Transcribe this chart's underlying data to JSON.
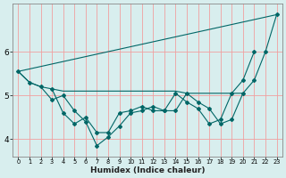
{
  "xlabel": "Humidex (Indice chaleur)",
  "bg_color": "#d8eeee",
  "grid_color": "#f0a0a0",
  "line_color": "#006666",
  "xlim": [
    -0.5,
    23.5
  ],
  "ylim": [
    3.6,
    7.1
  ],
  "yticks": [
    4,
    5,
    6
  ],
  "xticks": [
    0,
    1,
    2,
    3,
    4,
    5,
    6,
    7,
    8,
    9,
    10,
    11,
    12,
    13,
    14,
    15,
    16,
    17,
    18,
    19,
    20,
    21,
    22,
    23
  ],
  "series": [
    {
      "x": [
        0,
        23
      ],
      "y": [
        5.55,
        6.85
      ]
    },
    {
      "x": [
        0,
        1,
        2,
        3,
        4,
        5,
        6,
        7,
        8,
        9,
        10,
        11,
        12,
        13,
        14,
        15,
        16,
        17,
        18,
        19,
        20
      ],
      "y": [
        5.55,
        5.3,
        5.2,
        5.15,
        5.1,
        5.1,
        5.1,
        5.1,
        5.1,
        5.1,
        5.1,
        5.1,
        5.1,
        5.1,
        5.1,
        5.05,
        5.05,
        5.05,
        5.05,
        5.05,
        5.05
      ]
    },
    {
      "x": [
        0,
        1,
        2,
        3,
        4,
        5,
        6,
        7,
        8,
        9,
        10,
        11,
        12,
        13,
        14,
        15,
        16,
        17,
        18,
        19,
        20,
        21,
        22,
        23
      ],
      "y": [
        5.55,
        5.3,
        5.2,
        4.9,
        5.0,
        4.65,
        4.4,
        3.85,
        4.05,
        4.3,
        4.6,
        4.65,
        4.75,
        4.65,
        4.65,
        5.05,
        4.85,
        4.7,
        4.35,
        4.45,
        5.05,
        5.35,
        6.0,
        6.85
      ]
    },
    {
      "x": [
        3,
        4,
        5,
        6,
        7,
        8,
        9,
        10,
        11,
        12,
        13,
        14,
        15,
        16,
        17,
        18,
        19,
        20,
        21
      ],
      "y": [
        5.15,
        4.6,
        4.35,
        4.5,
        4.15,
        4.15,
        4.6,
        4.65,
        4.75,
        4.65,
        4.65,
        5.05,
        4.85,
        4.7,
        4.35,
        4.45,
        5.05,
        5.35,
        6.0
      ]
    }
  ]
}
